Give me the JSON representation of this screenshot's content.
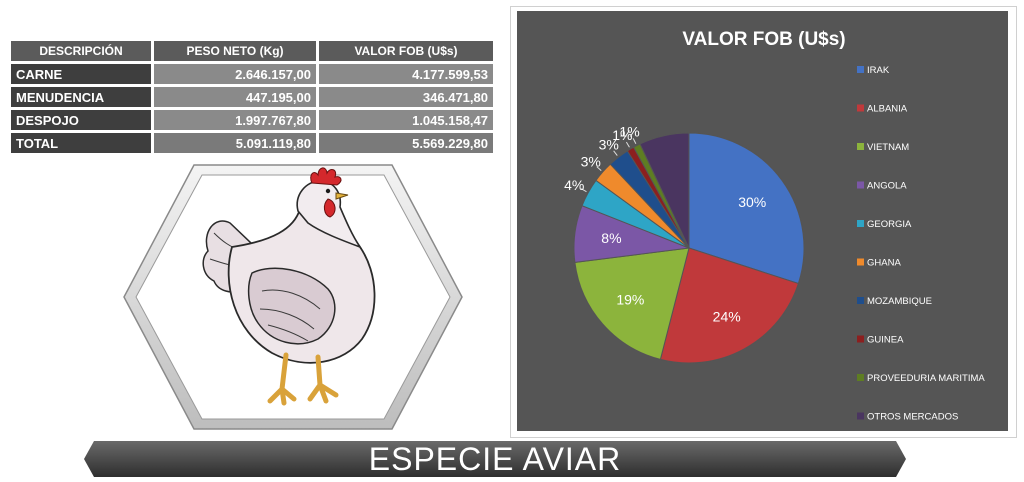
{
  "table": {
    "headers": [
      "DESCRIPCIÓN",
      "PESO NETO (Kg)",
      "VALOR FOB (U$s)"
    ],
    "rows": [
      {
        "desc": "CARNE",
        "peso": "2.646.157,00",
        "fob": "4.177.599,53"
      },
      {
        "desc": "MENUDENCIA",
        "peso": "447.195,00",
        "fob": "346.471,80"
      },
      {
        "desc": "DESPOJO",
        "peso": "1.997.767,80",
        "fob": "1.045.158,47"
      },
      {
        "desc": "TOTAL",
        "peso": "5.091.119,80",
        "fob": "5.569.229,80"
      }
    ]
  },
  "banner": {
    "title": "ESPECIE  AVIAR"
  },
  "chart_data": {
    "type": "pie",
    "title": "VALOR FOB (U$s)",
    "legend_position": "right",
    "slices": [
      {
        "label": "IRAK",
        "value": 30,
        "display": "30%",
        "color": "#4472c4"
      },
      {
        "label": "ALBANIA",
        "value": 24,
        "display": "24%",
        "color": "#c0393b"
      },
      {
        "label": "VIETNAM",
        "value": 19,
        "display": "19%",
        "color": "#8cb43c"
      },
      {
        "label": "ANGOLA",
        "value": 8,
        "display": "8%",
        "color": "#7b57a6"
      },
      {
        "label": "GEORGIA",
        "value": 4,
        "display": "4%",
        "color": "#2ea5c6"
      },
      {
        "label": "GHANA",
        "value": 3,
        "display": "3%",
        "color": "#ef8a2c"
      },
      {
        "label": "MOZAMBIQUE",
        "value": 3,
        "display": "3%",
        "color": "#1f4e8c"
      },
      {
        "label": "GUINEA",
        "value": 1,
        "display": "1%",
        "color": "#8c1f1f"
      },
      {
        "label": "PROVEEDURIA MARITIMA",
        "value": 1,
        "display": "1%",
        "color": "#5e7d22"
      },
      {
        "label": "OTROS MERCADOS",
        "value": 7,
        "display": "",
        "color": "#4a3560"
      }
    ]
  }
}
